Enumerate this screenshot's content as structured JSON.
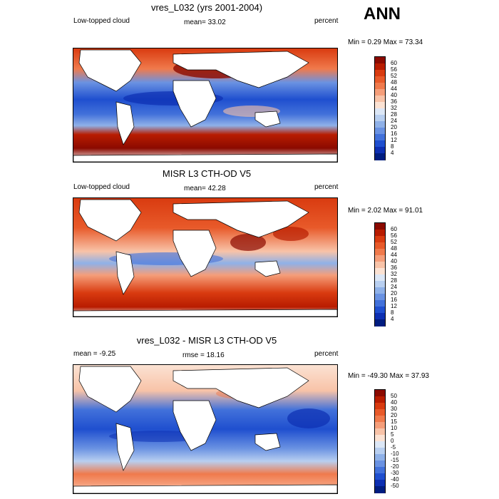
{
  "season": "ANN",
  "panels": [
    {
      "title": "vres_L032 (yrs 2001-2004)",
      "left_label": "Low-topped cloud",
      "center_label": "mean=  33.02",
      "right_label": "percent",
      "minmax": "Min =   0.29 Max =  73.34",
      "colorbar": {
        "labels": [
          "60",
          "56",
          "52",
          "48",
          "44",
          "40",
          "36",
          "32",
          "28",
          "24",
          "20",
          "16",
          "12",
          "8",
          "4"
        ],
        "colors": [
          "#8b0a00",
          "#b81c00",
          "#d93b10",
          "#e85a2a",
          "#f07a4c",
          "#f59e7a",
          "#f8c3a8",
          "#fbe2d3",
          "#dce7f6",
          "#b8cff0",
          "#8fb1e8",
          "#6a92e2",
          "#4271da",
          "#1f4fcf",
          "#0d2fb2",
          "#001d80"
        ]
      }
    },
    {
      "title": "MISR L3 CTH-OD V5",
      "left_label": "Low-topped cloud",
      "center_label": "mean=  42.28",
      "right_label": "percent",
      "minmax": "Min =   2.02 Max =  91.01",
      "colorbar": {
        "labels": [
          "60",
          "56",
          "52",
          "48",
          "44",
          "40",
          "36",
          "32",
          "28",
          "24",
          "20",
          "16",
          "12",
          "8",
          "4"
        ],
        "colors": [
          "#8b0a00",
          "#b81c00",
          "#d93b10",
          "#e85a2a",
          "#f07a4c",
          "#f59e7a",
          "#f8c3a8",
          "#fbe2d3",
          "#dce7f6",
          "#b8cff0",
          "#8fb1e8",
          "#6a92e2",
          "#4271da",
          "#1f4fcf",
          "#0d2fb2",
          "#001d80"
        ]
      }
    },
    {
      "title": "vres_L032 - MISR L3 CTH-OD V5",
      "left_label": "mean =  -9.25",
      "center_label": "rmse =  18.16",
      "right_label": "percent",
      "minmax": "Min = -49.30 Max =  37.93",
      "colorbar": {
        "labels": [
          "50",
          "40",
          "30",
          "20",
          "15",
          "10",
          "5",
          "0",
          "-5",
          "-10",
          "-15",
          "-20",
          "-30",
          "-40",
          "-50"
        ],
        "colors": [
          "#8b0a00",
          "#b81c00",
          "#d93b10",
          "#e85a2a",
          "#f07a4c",
          "#f59e7a",
          "#f8c3a8",
          "#fbe2d3",
          "#dce7f6",
          "#b8cff0",
          "#8fb1e8",
          "#6a92e2",
          "#4271da",
          "#1f4fcf",
          "#0d2fb2",
          "#001d80"
        ]
      }
    }
  ]
}
